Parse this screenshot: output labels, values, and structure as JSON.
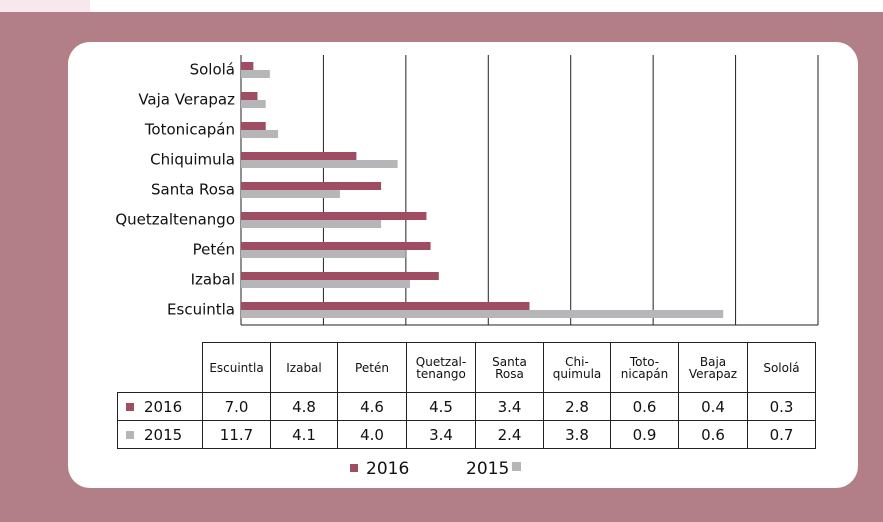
{
  "chart_data": {
    "type": "bar",
    "orientation": "horizontal",
    "categories": [
      "Escuintla",
      "Izabal",
      "Petén",
      "Quetzaltenango",
      "Santa Rosa",
      "Chiquimula",
      "Totonicapán",
      "Vaja Verapaz",
      "Sololá"
    ],
    "table_headers": [
      "Escuintla",
      "Izabal",
      "Petén",
      "Quetzal-\ntenango",
      "Santa\nRosa",
      "Chi-\nquimula",
      "Toto-\nnicapán",
      "Baja\nVerapaz",
      "Sololá"
    ],
    "series": [
      {
        "name": "2016",
        "color": "#9e4d63",
        "values": [
          7.0,
          4.8,
          4.6,
          4.5,
          3.4,
          2.8,
          0.6,
          0.4,
          0.3
        ],
        "value_labels": [
          "7.0",
          "4.8",
          "4.6",
          "4.5",
          "3.4",
          "2.8",
          "0.6",
          "0.4",
          "0.3"
        ]
      },
      {
        "name": "2015",
        "color": "#b6b6b9",
        "values": [
          11.7,
          4.1,
          4.0,
          3.4,
          2.4,
          3.8,
          0.9,
          0.6,
          0.7
        ],
        "value_labels": [
          "11.7",
          "4.1",
          "4.0",
          "3.4",
          "2.4",
          "3.8",
          "0.9",
          "0.6",
          "0.7"
        ]
      }
    ],
    "xlim": [
      0,
      14
    ],
    "xticks": [
      0,
      2,
      4,
      6,
      8,
      10,
      12,
      14
    ],
    "grid": true
  }
}
